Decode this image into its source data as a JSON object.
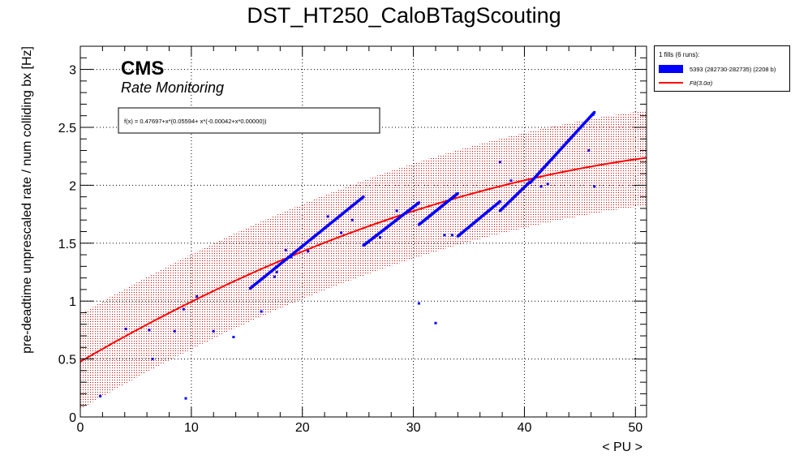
{
  "chart_data": {
    "type": "scatter",
    "title": "DST_HT250_CaloBTagScouting",
    "xlabel": "< PU >",
    "ylabel": "pre-deadtime unprescaled rate / num colliding bx [Hz]",
    "xlim": [
      0,
      51
    ],
    "ylim": [
      0,
      3.2
    ],
    "x_ticks": [
      0,
      10,
      20,
      30,
      40,
      50
    ],
    "y_ticks": [
      0,
      0.5,
      1,
      1.5,
      2,
      2.5,
      3
    ],
    "x_tick_labels": [
      "0",
      "10",
      "20",
      "30",
      "40",
      "50"
    ],
    "y_tick_labels": [
      "0",
      "0.5",
      "1",
      "1.5",
      "2",
      "2.5",
      "3"
    ],
    "grid": true,
    "legend_position": "outside-top-right",
    "cms_label": "CMS",
    "cms_sublabel": "Rate Monitoring",
    "fit_box_text": "f(x) = 0.47697+x*(0.05594+ x*(-0.00042+x*0.00000))",
    "legend": {
      "header": "1 fills (6 runs):",
      "entries": [
        {
          "label": "5393 (282730-282735) (2208 b)",
          "color": "#0000ff",
          "kind": "marker"
        },
        {
          "label": "Fit(3.0σ)",
          "color": "#ff0000",
          "kind": "line"
        }
      ]
    },
    "fit": {
      "coefficients": [
        0.47697,
        0.05594,
        -0.00042,
        0.0
      ],
      "x_range": [
        0,
        51
      ],
      "band_halfwidth": 0.41,
      "line_color": "#ff0000",
      "band_color": "#cc0000"
    },
    "series": [
      {
        "name": "5393 (282730-282735) (2208 b)",
        "color": "#0000ff",
        "segments": [
          {
            "x0": 15.3,
            "y0": 1.11,
            "x1": 25.5,
            "y1": 1.9,
            "n": 140
          },
          {
            "x0": 25.5,
            "y0": 1.48,
            "x1": 30.5,
            "y1": 1.85,
            "n": 80
          },
          {
            "x0": 30.5,
            "y0": 1.66,
            "x1": 34.0,
            "y1": 1.93,
            "n": 60
          },
          {
            "x0": 34.0,
            "y0": 1.56,
            "x1": 37.8,
            "y1": 1.86,
            "n": 60
          },
          {
            "x0": 37.8,
            "y0": 1.78,
            "x1": 40.5,
            "y1": 2.03,
            "n": 40
          },
          {
            "x0": 40.5,
            "y0": 2.02,
            "x1": 46.3,
            "y1": 2.63,
            "n": 100
          }
        ],
        "outliers": [
          [
            1.8,
            0.18
          ],
          [
            4.1,
            0.76
          ],
          [
            6.2,
            0.75
          ],
          [
            6.5,
            0.5
          ],
          [
            8.5,
            0.74
          ],
          [
            9.5,
            0.16
          ],
          [
            9.3,
            0.93
          ],
          [
            10.5,
            1.04
          ],
          [
            12.0,
            0.74
          ],
          [
            13.8,
            0.69
          ],
          [
            16.3,
            0.91
          ],
          [
            17.5,
            1.21
          ],
          [
            17.7,
            1.25
          ],
          [
            18.5,
            1.44
          ],
          [
            19.0,
            1.38
          ],
          [
            20.5,
            1.43
          ],
          [
            22.3,
            1.73
          ],
          [
            23.5,
            1.59
          ],
          [
            24.5,
            1.7
          ],
          [
            27.0,
            1.55
          ],
          [
            28.5,
            1.78
          ],
          [
            30.5,
            0.98
          ],
          [
            32.0,
            0.81
          ],
          [
            32.8,
            1.57
          ],
          [
            33.5,
            1.57
          ],
          [
            37.8,
            2.2
          ],
          [
            38.8,
            2.04
          ],
          [
            41.5,
            1.99
          ],
          [
            42.1,
            2.01
          ],
          [
            45.8,
            2.3
          ],
          [
            46.2,
            2.61
          ],
          [
            46.3,
            1.99
          ]
        ]
      }
    ]
  }
}
